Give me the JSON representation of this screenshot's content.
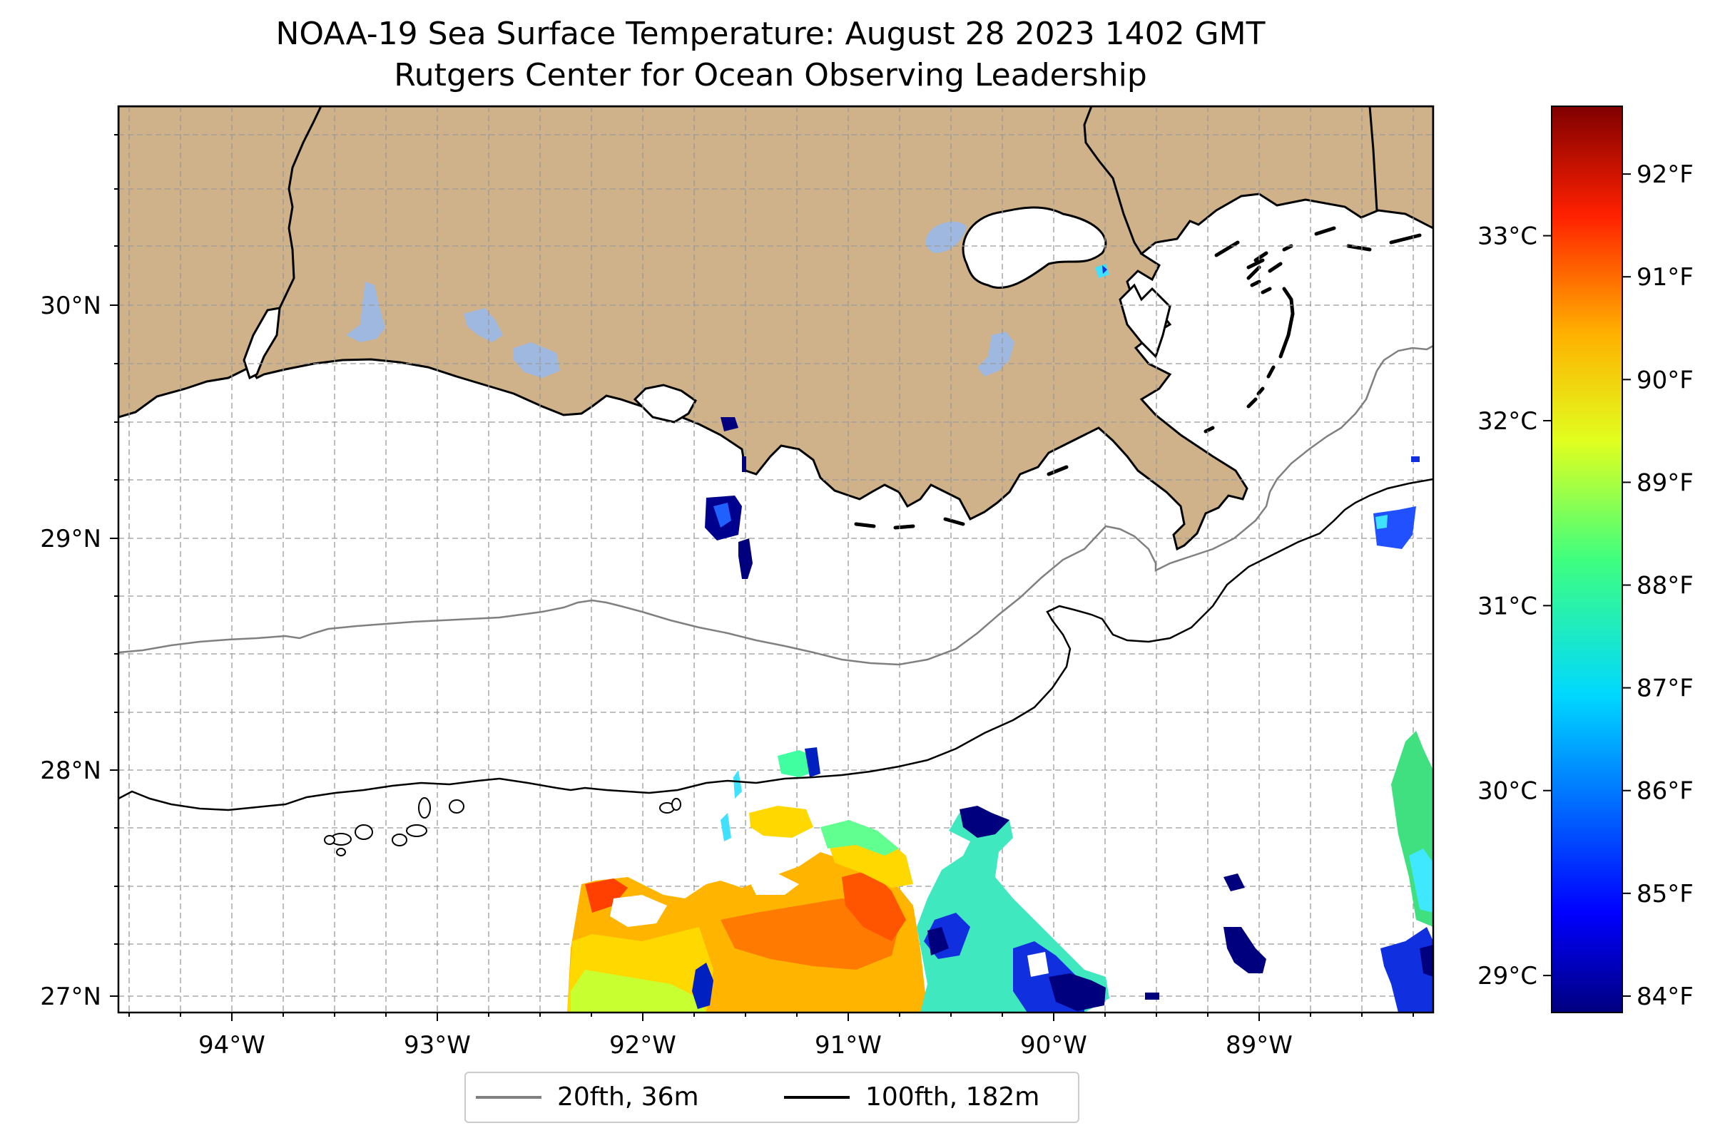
{
  "title": {
    "line1": "NOAA-19 Sea Surface Temperature: August 28 2023 1402 GMT",
    "line2": "Rutgers Center for Ocean Observing Leadership"
  },
  "map": {
    "lon_range": [
      -94.55,
      -88.15
    ],
    "lat_range": [
      26.95,
      30.85
    ],
    "lon_ticks": [
      "94°W",
      "93°W",
      "92°W",
      "91°W",
      "90°W",
      "89°W"
    ],
    "lat_ticks": [
      "30°N",
      "29°N",
      "28°N",
      "27°N"
    ],
    "land_color": "#cfb28a",
    "lake_color": "#9fb8e0",
    "ocean_color": "#ffffff",
    "gridlines": "dashed"
  },
  "colorbar": {
    "colormap": "jet",
    "celsius_range": [
      28.8,
      33.7
    ],
    "celsius_ticks": [
      "29°C",
      "30°C",
      "31°C",
      "32°C",
      "33°C"
    ],
    "fahrenheit_ticks": [
      "84°F",
      "85°F",
      "86°F",
      "87°F",
      "88°F",
      "89°F",
      "90°F",
      "91°F",
      "92°F"
    ]
  },
  "legend": {
    "items": [
      {
        "label": "20fth, 36m",
        "color": "#808080"
      },
      {
        "label": "100fth, 182m",
        "color": "#000000"
      }
    ]
  }
}
